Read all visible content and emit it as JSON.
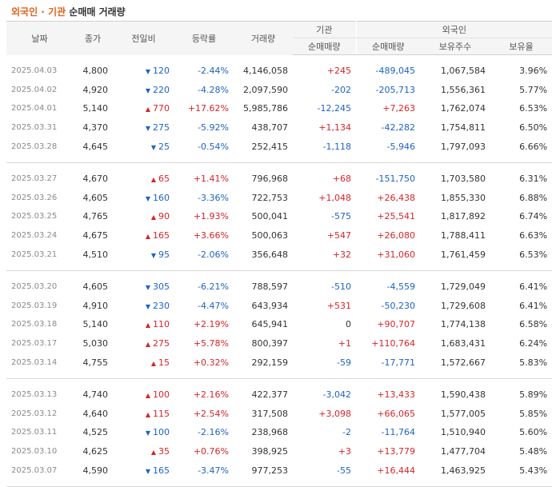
{
  "title": {
    "part1": "외국인 · 기관",
    "part2": " 순매매 거래량"
  },
  "headers": {
    "date": "날짜",
    "close": "종가",
    "change": "전일비",
    "rate": "등락률",
    "volume": "거래량",
    "inst": "기관",
    "foreign": "외국인",
    "inst_net": "순매매량",
    "for_net": "순매매량",
    "holdings": "보유주수",
    "ratio": "보유율"
  },
  "rows": [
    {
      "date": "2025.04.03",
      "close": "4,800",
      "dir": "down",
      "change": "120",
      "rate": "-2.44%",
      "volume": "4,146,058",
      "inst": "+245",
      "foreign": "-489,045",
      "holdings": "1,067,584",
      "ratio": "3.96%"
    },
    {
      "date": "2025.04.02",
      "close": "4,920",
      "dir": "down",
      "change": "220",
      "rate": "-4.28%",
      "volume": "2,097,590",
      "inst": "-202",
      "foreign": "-205,713",
      "holdings": "1,556,361",
      "ratio": "5.77%"
    },
    {
      "date": "2025.04.01",
      "close": "5,140",
      "dir": "up",
      "change": "770",
      "rate": "+17.62%",
      "volume": "5,985,786",
      "inst": "-12,245",
      "foreign": "+7,263",
      "holdings": "1,762,074",
      "ratio": "6.53%"
    },
    {
      "date": "2025.03.31",
      "close": "4,370",
      "dir": "down",
      "change": "275",
      "rate": "-5.92%",
      "volume": "438,707",
      "inst": "+1,134",
      "foreign": "-42,282",
      "holdings": "1,754,811",
      "ratio": "6.50%"
    },
    {
      "date": "2025.03.28",
      "close": "4,645",
      "dir": "down",
      "change": "25",
      "rate": "-0.54%",
      "volume": "252,415",
      "inst": "-1,118",
      "foreign": "-5,946",
      "holdings": "1,797,093",
      "ratio": "6.66%"
    },
    {
      "date": "2025.03.27",
      "close": "4,670",
      "dir": "up",
      "change": "65",
      "rate": "+1.41%",
      "volume": "796,968",
      "inst": "+68",
      "foreign": "-151,750",
      "holdings": "1,703,580",
      "ratio": "6.31%"
    },
    {
      "date": "2025.03.26",
      "close": "4,605",
      "dir": "down",
      "change": "160",
      "rate": "-3.36%",
      "volume": "722,753",
      "inst": "+1,048",
      "foreign": "+26,438",
      "holdings": "1,855,330",
      "ratio": "6.88%"
    },
    {
      "date": "2025.03.25",
      "close": "4,765",
      "dir": "up",
      "change": "90",
      "rate": "+1.93%",
      "volume": "500,041",
      "inst": "-575",
      "foreign": "+25,541",
      "holdings": "1,817,892",
      "ratio": "6.74%"
    },
    {
      "date": "2025.03.24",
      "close": "4,675",
      "dir": "up",
      "change": "165",
      "rate": "+3.66%",
      "volume": "500,063",
      "inst": "+547",
      "foreign": "+26,080",
      "holdings": "1,788,411",
      "ratio": "6.63%"
    },
    {
      "date": "2025.03.21",
      "close": "4,510",
      "dir": "down",
      "change": "95",
      "rate": "-2.06%",
      "volume": "356,648",
      "inst": "+32",
      "foreign": "+31,060",
      "holdings": "1,761,459",
      "ratio": "6.53%"
    },
    {
      "date": "2025.03.20",
      "close": "4,605",
      "dir": "down",
      "change": "305",
      "rate": "-6.21%",
      "volume": "788,597",
      "inst": "-510",
      "foreign": "-4,559",
      "holdings": "1,729,049",
      "ratio": "6.41%"
    },
    {
      "date": "2025.03.19",
      "close": "4,910",
      "dir": "down",
      "change": "230",
      "rate": "-4.47%",
      "volume": "643,934",
      "inst": "+531",
      "foreign": "-50,230",
      "holdings": "1,729,608",
      "ratio": "6.41%"
    },
    {
      "date": "2025.03.18",
      "close": "5,140",
      "dir": "up",
      "change": "110",
      "rate": "+2.19%",
      "volume": "645,941",
      "inst": "0",
      "foreign": "+90,707",
      "holdings": "1,774,138",
      "ratio": "6.58%"
    },
    {
      "date": "2025.03.17",
      "close": "5,030",
      "dir": "up",
      "change": "275",
      "rate": "+5.78%",
      "volume": "800,397",
      "inst": "+1",
      "foreign": "+110,764",
      "holdings": "1,683,431",
      "ratio": "6.24%"
    },
    {
      "date": "2025.03.14",
      "close": "4,755",
      "dir": "up",
      "change": "15",
      "rate": "+0.32%",
      "volume": "292,159",
      "inst": "-59",
      "foreign": "-17,771",
      "holdings": "1,572,667",
      "ratio": "5.83%"
    },
    {
      "date": "2025.03.13",
      "close": "4,740",
      "dir": "up",
      "change": "100",
      "rate": "+2.16%",
      "volume": "422,377",
      "inst": "-3,042",
      "foreign": "+13,433",
      "holdings": "1,590,438",
      "ratio": "5.89%"
    },
    {
      "date": "2025.03.12",
      "close": "4,640",
      "dir": "up",
      "change": "115",
      "rate": "+2.54%",
      "volume": "317,508",
      "inst": "+3,098",
      "foreign": "+66,065",
      "holdings": "1,577,005",
      "ratio": "5.85%"
    },
    {
      "date": "2025.03.11",
      "close": "4,525",
      "dir": "down",
      "change": "100",
      "rate": "-2.16%",
      "volume": "238,968",
      "inst": "-2",
      "foreign": "-11,764",
      "holdings": "1,510,940",
      "ratio": "5.60%"
    },
    {
      "date": "2025.03.10",
      "close": "4,625",
      "dir": "up",
      "change": "35",
      "rate": "+0.76%",
      "volume": "398,925",
      "inst": "+3",
      "foreign": "+13,779",
      "holdings": "1,477,704",
      "ratio": "5.48%"
    },
    {
      "date": "2025.03.07",
      "close": "4,590",
      "dir": "down",
      "change": "165",
      "rate": "-3.47%",
      "volume": "977,253",
      "inst": "-55",
      "foreign": "+16,444",
      "holdings": "1,463,925",
      "ratio": "5.43%"
    }
  ],
  "colors": {
    "up": "#d6252b",
    "down": "#1f62c4",
    "title_accent": "#e2621b"
  },
  "icons": {
    "up": "up-triangle-icon",
    "down": "down-triangle-icon"
  }
}
